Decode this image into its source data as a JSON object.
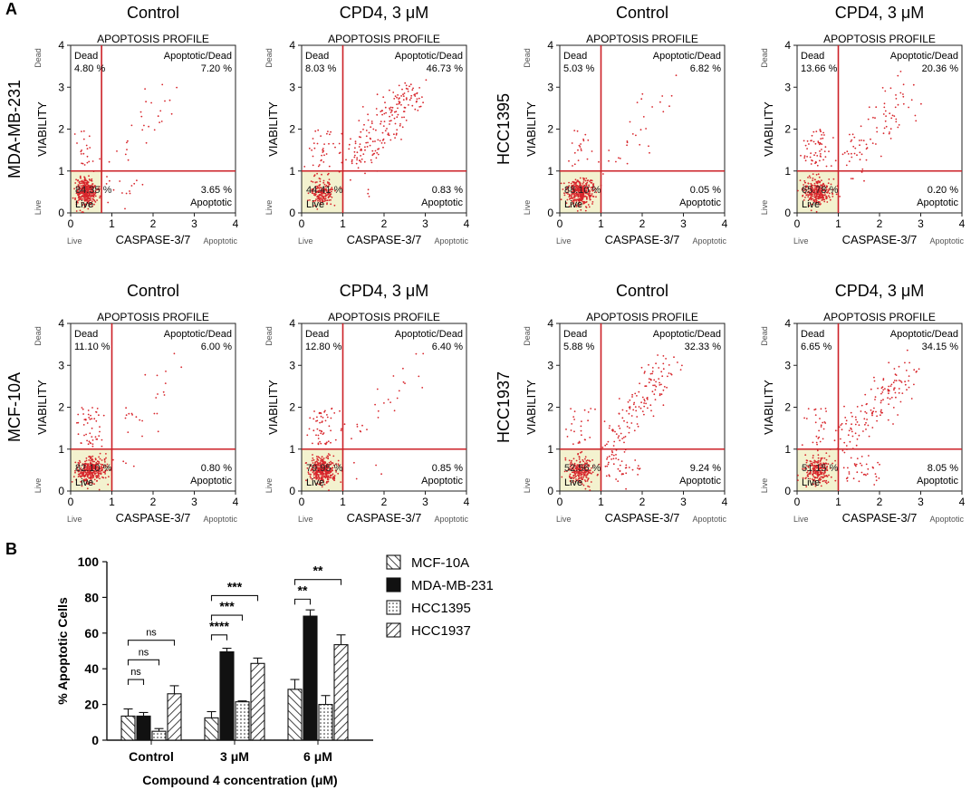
{
  "panel_labels": {
    "a": "A",
    "b": "B"
  },
  "colors": {
    "dots": "#d8262c",
    "gate": "#cc2027",
    "live_fill": "#f3f2cf",
    "axis": "#222222"
  },
  "flow": {
    "plot_title": "APOPTOSIS PROFILE",
    "xlabel": "CASPASE-3/7",
    "ylabel": "VIABILITY",
    "x_low_label": "Live",
    "x_high_label": "Apoptotic",
    "y_low_label": "Live",
    "y_high_label": "Dead",
    "ticks": [
      "0",
      "1",
      "2",
      "3",
      "4"
    ],
    "cell_lines": [
      "MDA-MB-231",
      "HCC1395",
      "MCF-10A",
      "HCC1937"
    ]
  },
  "chart_data": [
    {
      "type": "scatter",
      "title": "APOPTOSIS PROFILE",
      "xlabel": "CASPASE-3/7",
      "ylabel": "VIABILITY",
      "xlim": [
        0,
        4
      ],
      "ylim": [
        0,
        4
      ],
      "panels": [
        {
          "cell_line": "MDA-MB-231",
          "condition": "Control",
          "gate": [
            0.75,
            1.0
          ],
          "dead_label": "Dead",
          "dead": "4.80 %",
          "apoptotic_dead_label": "Apoptotic/Dead",
          "apoptotic_dead": "7.20 %",
          "apoptotic_label": "Apoptotic",
          "apoptotic": "3.65 %",
          "live_label": "Live",
          "live": "84.35 %",
          "cluster_pct": 84.35
        },
        {
          "cell_line": "MDA-MB-231",
          "condition": "CPD4, 3 μM",
          "gate": [
            1.0,
            1.0
          ],
          "dead_label": "Dead",
          "dead": "8.03 %",
          "apoptotic_dead_label": "Apoptotic/Dead",
          "apoptotic_dead": "46.73 %",
          "apoptotic_label": "Apoptotic",
          "apoptotic": "0.83 %",
          "live_label": "Live",
          "live": "44.41 %",
          "cluster_pct": 44.41
        },
        {
          "cell_line": "HCC1395",
          "condition": "Control",
          "gate": [
            1.0,
            1.0
          ],
          "dead_label": "Dead",
          "dead": "5.03 %",
          "apoptotic_dead_label": "Apoptotic/Dead",
          "apoptotic_dead": "6.82 %",
          "apoptotic_label": "Apoptotic",
          "apoptotic": "0.05 %",
          "live_label": "Live",
          "live": "88.10 %",
          "cluster_pct": 88.1
        },
        {
          "cell_line": "HCC1395",
          "condition": "CPD4, 3 μM",
          "gate": [
            1.0,
            1.0
          ],
          "dead_label": "Dead",
          "dead": "13.66 %",
          "apoptotic_dead_label": "Apoptotic/Dead",
          "apoptotic_dead": "20.36 %",
          "apoptotic_label": "Apoptotic",
          "apoptotic": "0.20 %",
          "live_label": "Live",
          "live": "65.78 %",
          "cluster_pct": 65.78
        },
        {
          "cell_line": "MCF-10A",
          "condition": "Control",
          "gate": [
            1.0,
            1.0
          ],
          "dead_label": "Dead",
          "dead": "11.10 %",
          "apoptotic_dead_label": "Apoptotic/Dead",
          "apoptotic_dead": "6.00 %",
          "apoptotic_label": "Apoptotic",
          "apoptotic": "0.80 %",
          "live_label": "Live",
          "live": "82.10 %",
          "cluster_pct": 82.1
        },
        {
          "cell_line": "MCF-10A",
          "condition": "CPD4, 3 μM",
          "gate": [
            1.0,
            1.0
          ],
          "dead_label": "Dead",
          "dead": "12.80 %",
          "apoptotic_dead_label": "Apoptotic/Dead",
          "apoptotic_dead": "6.40 %",
          "apoptotic_label": "Apoptotic",
          "apoptotic": "0.85 %",
          "live_label": "Live",
          "live": "79.95 %",
          "cluster_pct": 79.95
        },
        {
          "cell_line": "HCC1937",
          "condition": "Control",
          "gate": [
            1.0,
            1.0
          ],
          "dead_label": "Dead",
          "dead": "5.88 %",
          "apoptotic_dead_label": "Apoptotic/Dead",
          "apoptotic_dead": "32.33 %",
          "apoptotic_label": "Apoptotic",
          "apoptotic": "9.24 %",
          "live_label": "Live",
          "live": "52.56 %",
          "cluster_pct": 52.56
        },
        {
          "cell_line": "HCC1937",
          "condition": "CPD4, 3 μM",
          "gate": [
            1.0,
            1.0
          ],
          "dead_label": "Dead",
          "dead": "6.65 %",
          "apoptotic_dead_label": "Apoptotic/Dead",
          "apoptotic_dead": "34.15 %",
          "apoptotic_label": "Apoptotic",
          "apoptotic": "8.05 %",
          "live_label": "Live",
          "live": "51.15 %",
          "cluster_pct": 51.15
        }
      ]
    },
    {
      "type": "bar",
      "xlabel": "Compound 4 concentration (μM)",
      "ylabel": "% Apoptotic Cells",
      "ylim": [
        0,
        100
      ],
      "yticks": [
        "0",
        "20",
        "40",
        "60",
        "80",
        "100"
      ],
      "categories": [
        "Control",
        "3 μM",
        "6 μM"
      ],
      "series": [
        {
          "name": "MCF-10A",
          "pattern": "hatch-back",
          "values": [
            13.5,
            12.5,
            28.5
          ],
          "errors": [
            4,
            3.5,
            5.5
          ]
        },
        {
          "name": "MDA-MB-231",
          "pattern": "solid",
          "values": [
            13.5,
            49.5,
            69.5
          ],
          "errors": [
            2,
            2,
            3.5
          ]
        },
        {
          "name": "HCC1395",
          "pattern": "dots",
          "values": [
            5,
            21.5,
            20
          ],
          "errors": [
            1.5,
            0.5,
            5
          ]
        },
        {
          "name": "HCC1937",
          "pattern": "hatch-fwd",
          "values": [
            26,
            43,
            53.5
          ],
          "errors": [
            4.5,
            3,
            5.5
          ]
        }
      ],
      "significance": [
        {
          "category": 0,
          "from": 0,
          "to": 1,
          "label": "ns",
          "level": 1
        },
        {
          "category": 0,
          "from": 0,
          "to": 2,
          "label": "ns",
          "level": 2
        },
        {
          "category": 0,
          "from": 0,
          "to": 3,
          "label": "ns",
          "level": 3
        },
        {
          "category": 1,
          "from": 0,
          "to": 1,
          "label": "****",
          "level": 1
        },
        {
          "category": 1,
          "from": 0,
          "to": 2,
          "label": "***",
          "level": 2
        },
        {
          "category": 1,
          "from": 0,
          "to": 3,
          "label": "***",
          "level": 3
        },
        {
          "category": 2,
          "from": 0,
          "to": 1,
          "label": "**",
          "level": 1
        },
        {
          "category": 2,
          "from": 0,
          "to": 3,
          "label": "**",
          "level": 3
        }
      ]
    }
  ]
}
